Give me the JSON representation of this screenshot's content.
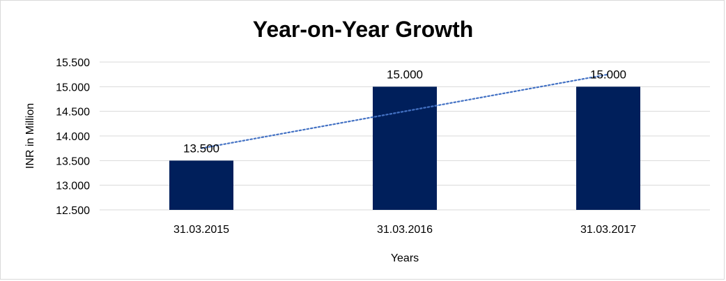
{
  "chart_data": {
    "type": "bar",
    "title": "Year-on-Year Growth",
    "xlabel": "Years",
    "ylabel": "INR in Million",
    "categories": [
      "31.03.2015",
      "31.03.2016",
      "31.03.2017"
    ],
    "values": [
      13.5,
      15.0,
      15.0
    ],
    "data_labels": [
      "13.500",
      "15.000",
      "15.000"
    ],
    "ylim": [
      12.5,
      15.5
    ],
    "y_ticks": [
      {
        "value": 12.5,
        "label": "12.500"
      },
      {
        "value": 13.0,
        "label": "13.000"
      },
      {
        "value": 13.5,
        "label": "13.500"
      },
      {
        "value": 14.0,
        "label": "14.000"
      },
      {
        "value": 14.5,
        "label": "14.500"
      },
      {
        "value": 15.0,
        "label": "15.000"
      },
      {
        "value": 15.5,
        "label": "15.500"
      }
    ],
    "grid": true,
    "legend": "none",
    "trendline": {
      "type": "linear",
      "style": "dotted"
    },
    "colors": {
      "bar": "#001F5B",
      "trendline": "#4472C4",
      "grid": "#d9d9d9",
      "text": "#000000"
    }
  }
}
